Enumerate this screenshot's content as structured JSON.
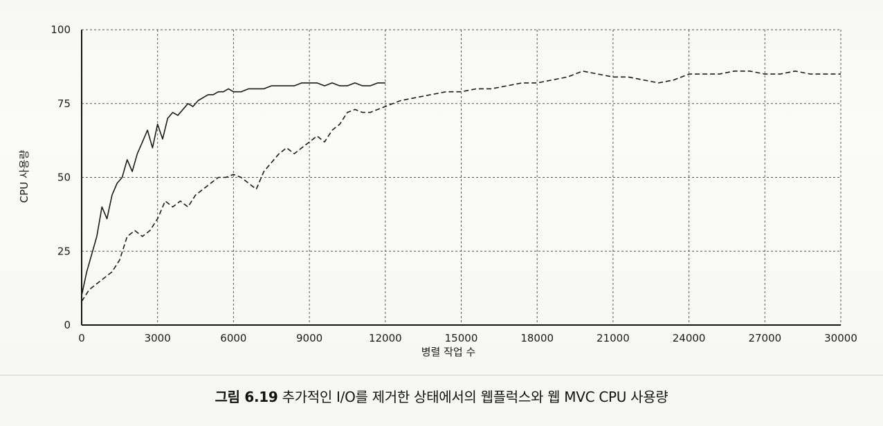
{
  "caption": {
    "figure_number": "그림 6.19",
    "text": " 추가적인 I/O를 제거한 상태에서의 웹플럭스와 웹 MVC CPU 사용량"
  },
  "chart_data": {
    "type": "line",
    "title": "",
    "xlabel": "병렬 작업 수",
    "ylabel": "CPU 사용량",
    "xlim": [
      0,
      30000
    ],
    "ylim": [
      0,
      100
    ],
    "x_ticks": [
      "0",
      "3000",
      "6000",
      "9000",
      "12000",
      "15000",
      "18000",
      "21000",
      "24000",
      "27000",
      "30000"
    ],
    "y_ticks": [
      "0",
      "25",
      "50",
      "75",
      "100"
    ],
    "grid": true,
    "legend": "none",
    "series": [
      {
        "style": "solid",
        "x": [
          0,
          200,
          400,
          600,
          800,
          1000,
          1200,
          1400,
          1600,
          1800,
          2000,
          2200,
          2400,
          2600,
          2800,
          3000,
          3200,
          3400,
          3600,
          3800,
          4000,
          4200,
          4400,
          4600,
          4800,
          5000,
          5200,
          5400,
          5600,
          5800,
          6000,
          6300,
          6600,
          6900,
          7200,
          7500,
          7800,
          8100,
          8400,
          8700,
          9000,
          9300,
          9600,
          9900,
          10200,
          10500,
          10800,
          11100,
          11400,
          11700,
          12000
        ],
        "y": [
          10,
          18,
          24,
          30,
          40,
          36,
          44,
          48,
          50,
          56,
          52,
          58,
          62,
          66,
          60,
          68,
          63,
          70,
          72,
          71,
          73,
          75,
          74,
          76,
          77,
          78,
          78,
          79,
          79,
          80,
          79,
          79,
          80,
          80,
          80,
          81,
          81,
          81,
          81,
          82,
          82,
          82,
          81,
          82,
          81,
          81,
          82,
          81,
          81,
          82,
          82
        ]
      },
      {
        "style": "dashed",
        "x": [
          0,
          300,
          600,
          900,
          1200,
          1500,
          1800,
          2100,
          2400,
          2700,
          3000,
          3300,
          3600,
          3900,
          4200,
          4500,
          4800,
          5100,
          5400,
          5700,
          6000,
          6300,
          6600,
          6900,
          7200,
          7500,
          7800,
          8100,
          8400,
          8700,
          9000,
          9300,
          9600,
          9900,
          10200,
          10500,
          10800,
          11100,
          11400,
          11700,
          12000,
          12600,
          13200,
          13800,
          14400,
          15000,
          15600,
          16200,
          16800,
          17400,
          18000,
          18600,
          19200,
          19800,
          20400,
          21000,
          21600,
          22200,
          22800,
          23400,
          24000,
          24600,
          25200,
          25800,
          26400,
          27000,
          27600,
          28200,
          28800,
          29400,
          30000
        ],
        "y": [
          8,
          12,
          14,
          16,
          18,
          22,
          30,
          32,
          30,
          32,
          36,
          42,
          40,
          42,
          40,
          44,
          46,
          48,
          50,
          50,
          51,
          50,
          48,
          46,
          52,
          55,
          58,
          60,
          58,
          60,
          62,
          64,
          62,
          66,
          68,
          72,
          73,
          72,
          72,
          73,
          74,
          76,
          77,
          78,
          79,
          79,
          80,
          80,
          81,
          82,
          82,
          83,
          84,
          86,
          85,
          84,
          84,
          83,
          82,
          83,
          85,
          85,
          85,
          86,
          86,
          85,
          85,
          86,
          85,
          85,
          85
        ]
      }
    ]
  }
}
